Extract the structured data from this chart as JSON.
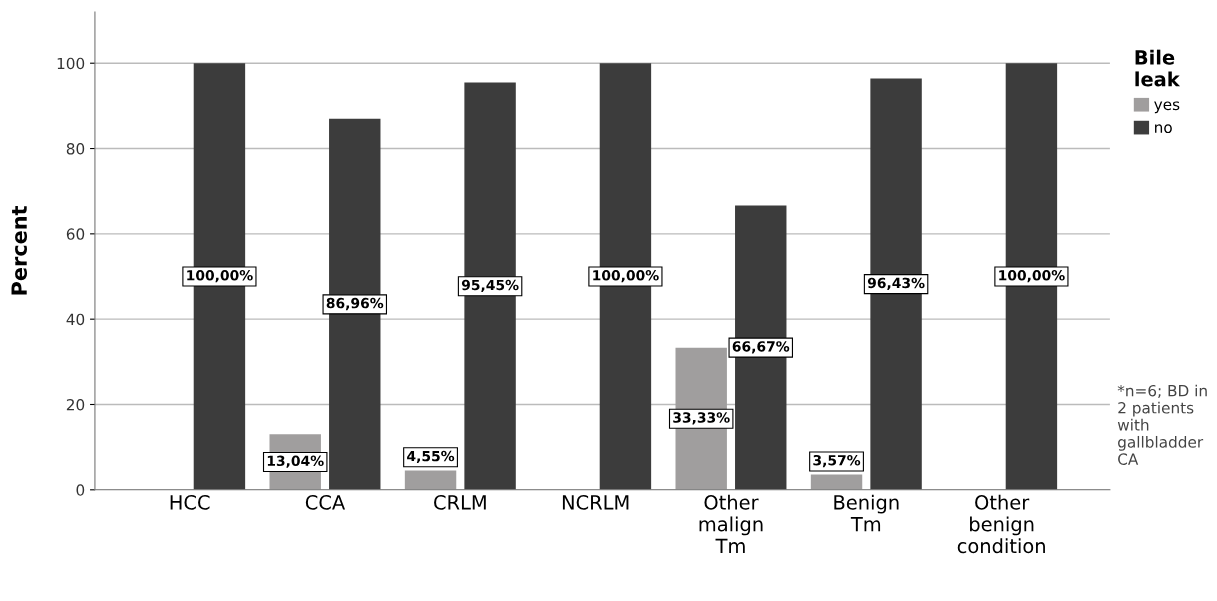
{
  "chart_data": {
    "type": "bar",
    "ylabel": "Percent",
    "legend_title": "Bile leak",
    "categories": [
      "HCC",
      "CCA",
      "CRLM",
      "NCRLM",
      "Other\nmalign\nTm",
      "Benign\nTm",
      "Other\nbenign\ncondition"
    ],
    "series": [
      {
        "name": "yes",
        "color": "#a09e9e",
        "values": [
          null,
          13.04,
          4.55,
          null,
          33.33,
          3.57,
          null
        ],
        "value_labels": [
          null,
          "13,04%",
          "4,55%",
          null,
          "33,33%",
          "3,57%",
          null
        ]
      },
      {
        "name": "no",
        "color": "#3c3c3c",
        "values": [
          100,
          86.96,
          95.45,
          100,
          66.67,
          96.43,
          100
        ],
        "value_labels": [
          "100,00%",
          "86,96%",
          "95,45%",
          "100,00%",
          "66,67%",
          "96,43%",
          "100,00%"
        ]
      }
    ],
    "ylim": [
      0,
      112
    ],
    "yticks": [
      0,
      20,
      40,
      60,
      80,
      100
    ],
    "grid": "y",
    "legend": "top right",
    "annotations": [
      "*n=6; BD in 2 patients with gallbladder CA"
    ]
  }
}
